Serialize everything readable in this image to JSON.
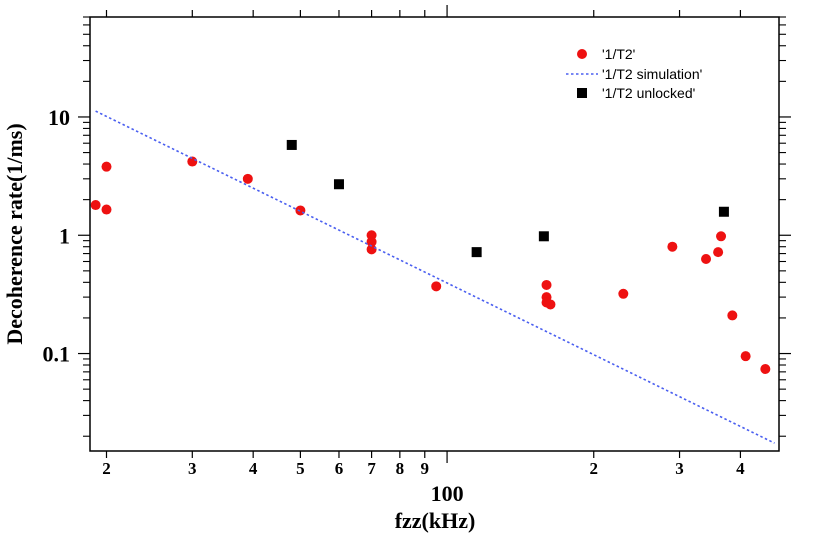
{
  "chart_data": {
    "type": "scatter",
    "title": "",
    "xlabel": "fzz(kHz)",
    "ylabel": "Decoherence rate(1/ms)",
    "xscale": "log",
    "yscale": "log",
    "xlim": [
      18.5,
      480
    ],
    "ylim": [
      0.015,
      70
    ],
    "x_ticks": [
      {
        "value": 20,
        "label": "2"
      },
      {
        "value": 30,
        "label": "3"
      },
      {
        "value": 40,
        "label": "4"
      },
      {
        "value": 50,
        "label": "5"
      },
      {
        "value": 60,
        "label": "6"
      },
      {
        "value": 70,
        "label": "7"
      },
      {
        "value": 80,
        "label": "8"
      },
      {
        "value": 90,
        "label": "9"
      },
      {
        "value": 100,
        "label": "100"
      },
      {
        "value": 200,
        "label": "2"
      },
      {
        "value": 300,
        "label": "3"
      },
      {
        "value": 400,
        "label": "4"
      }
    ],
    "y_ticks": [
      {
        "value": 0.1,
        "label": "0.1"
      },
      {
        "value": 1,
        "label": "1"
      },
      {
        "value": 10,
        "label": "10"
      }
    ],
    "legend_position": "top-right",
    "series": [
      {
        "name": "'1/T2'",
        "kind": "scatter",
        "marker": "circle",
        "color": "#ee1111",
        "points": [
          [
            19.0,
            1.8
          ],
          [
            20.0,
            3.8
          ],
          [
            20.0,
            1.65
          ],
          [
            30.0,
            4.2
          ],
          [
            39.0,
            3.0
          ],
          [
            50.0,
            1.62
          ],
          [
            70.0,
            1.0
          ],
          [
            70.0,
            0.88
          ],
          [
            70.0,
            0.76
          ],
          [
            95.0,
            0.37
          ],
          [
            160.0,
            0.38
          ],
          [
            160.0,
            0.3
          ],
          [
            160.0,
            0.27
          ],
          [
            163.0,
            0.26
          ],
          [
            230.0,
            0.32
          ],
          [
            290.0,
            0.8
          ],
          [
            340.0,
            0.63
          ],
          [
            360.0,
            0.72
          ],
          [
            365.0,
            0.98
          ],
          [
            385.0,
            0.21
          ],
          [
            410.0,
            0.095
          ],
          [
            450.0,
            0.074
          ]
        ]
      },
      {
        "name": "'1/T2 simulation'",
        "kind": "line",
        "style": "dotted",
        "color": "#4a5ff0",
        "points": [
          [
            19.0,
            11.2
          ],
          [
            470.0,
            0.0175
          ]
        ]
      },
      {
        "name": "'1/T2 unlocked'",
        "kind": "scatter",
        "marker": "square",
        "color": "#000000",
        "points": [
          [
            48.0,
            5.8
          ],
          [
            60.0,
            2.7
          ],
          [
            115.0,
            0.72
          ],
          [
            158.0,
            0.98
          ],
          [
            370.0,
            1.58
          ]
        ]
      }
    ]
  }
}
